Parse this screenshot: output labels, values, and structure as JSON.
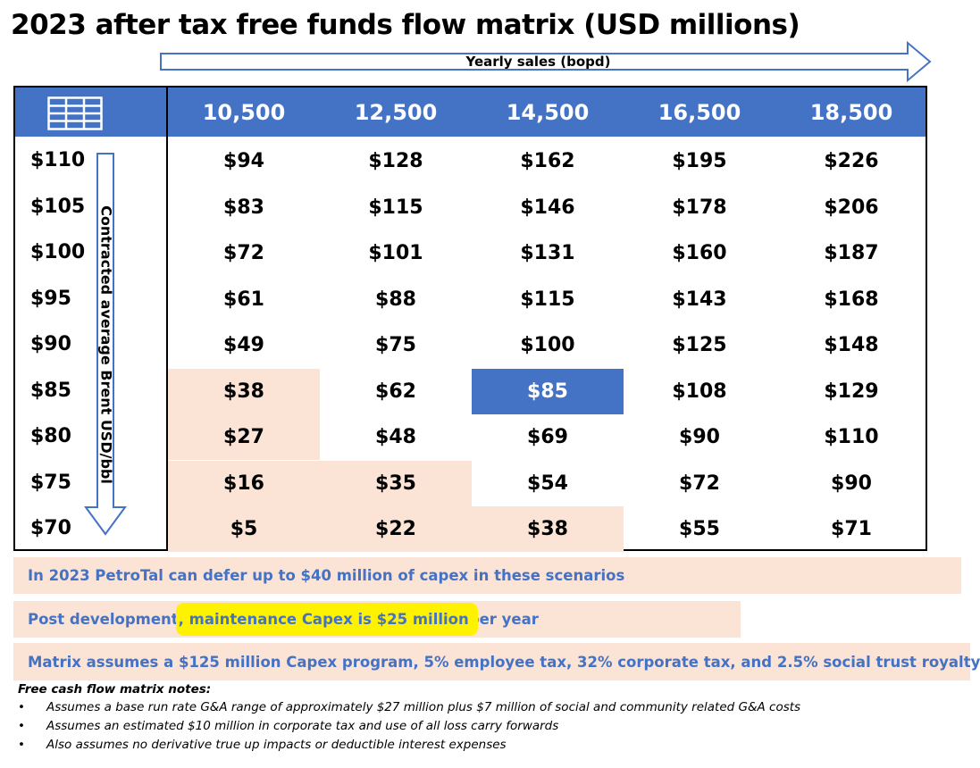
{
  "title": "2023 after tax free funds flow matrix (USD millions)",
  "x_axis_label": "Yearly sales (bopd)",
  "y_axis_label": "Contracted average Brent USD/bbl",
  "header_icon": "table-grid-icon",
  "colors": {
    "header_blue": "#4472c4",
    "peach": "#fbe3d6",
    "highlight_yellow": "#fff200"
  },
  "columns": [
    "10,500",
    "12,500",
    "14,500",
    "16,500",
    "18,500"
  ],
  "rows": [
    {
      "label": "$110",
      "cells": [
        "$94",
        "$128",
        "$162",
        "$195",
        "$226"
      ]
    },
    {
      "label": "$105",
      "cells": [
        "$83",
        "$115",
        "$146",
        "$178",
        "$206"
      ]
    },
    {
      "label": "$100",
      "cells": [
        "$72",
        "$101",
        "$131",
        "$160",
        "$187"
      ]
    },
    {
      "label": "$95",
      "cells": [
        "$61",
        "$88",
        "$115",
        "$143",
        "$168"
      ]
    },
    {
      "label": "$90",
      "cells": [
        "$49",
        "$75",
        "$100",
        "$125",
        "$148"
      ]
    },
    {
      "label": "$85",
      "cells": [
        "$38",
        "$62",
        "$85",
        "$108",
        "$129"
      ]
    },
    {
      "label": "$80",
      "cells": [
        "$27",
        "$48",
        "$69",
        "$90",
        "$110"
      ]
    },
    {
      "label": "$75",
      "cells": [
        "$16",
        "$35",
        "$54",
        "$72",
        "$90"
      ]
    },
    {
      "label": "$70",
      "cells": [
        "$5",
        "$22",
        "$38",
        "$55",
        "$71"
      ]
    }
  ],
  "highlighted_cell": {
    "price": "$85",
    "sales": "14,500",
    "value": "$85"
  },
  "notes": {
    "note1": "In 2023 PetroTal can defer up to $40 million of capex in these scenarios",
    "note2_pre": "Post development",
    "note2_highlight": ", maintenance Capex is $25 million ",
    "note2_post": "per year",
    "note3": "Matrix assumes a $125 million Capex program, 5% employee tax, 32% corporate tax, and 2.5% social trust royalty"
  },
  "footnotes": {
    "title": "Free cash flow matrix notes:",
    "bullet": "•",
    "items": [
      "Assumes a base run rate G&A range of approximately $27 million plus $7 million of social and community related G&A costs",
      "Assumes an estimated $10 million in corporate tax and use of all loss carry forwards",
      "Also assumes no derivative true up impacts or deductible interest expenses"
    ]
  }
}
